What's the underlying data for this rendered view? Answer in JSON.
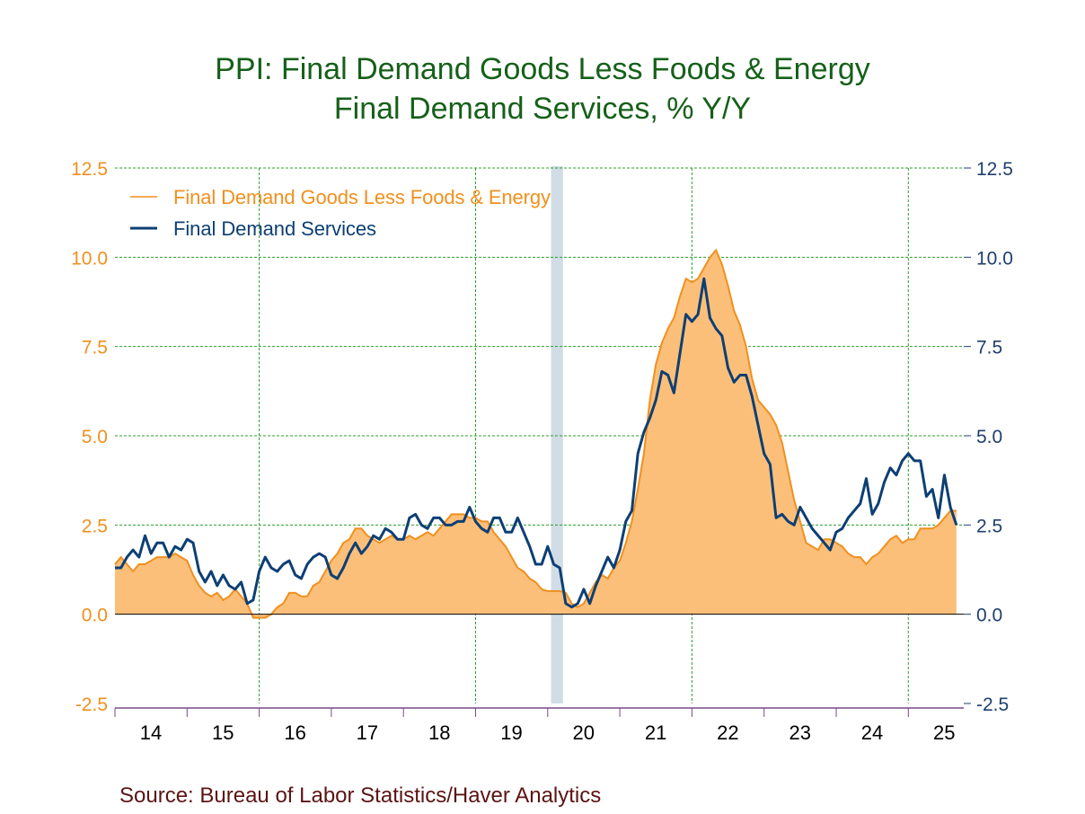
{
  "chart_data": {
    "type": "area+line",
    "title": "PPI: Final Demand Goods Less Foods & Energy",
    "subtitle": "Final Demand Services, % Y/Y",
    "source": "Source:  Bureau of Labor Statistics/Haver Analytics",
    "start": "2014-01",
    "frequency": "monthly",
    "ylim": [
      -2.5,
      12.5
    ],
    "yticks": [
      "12.5",
      "10.0",
      "7.5",
      "5.0",
      "2.5",
      "0.0",
      "-2.5"
    ],
    "xticks": [
      "14",
      "15",
      "16",
      "17",
      "18",
      "19",
      "20",
      "21",
      "22",
      "23",
      "24",
      "25"
    ],
    "grid": true,
    "legend": "top-left",
    "recession": [
      "2020-02",
      "2020-04"
    ],
    "colors": {
      "goods_line": "#f0901e",
      "goods_fill": "#fcbf7a",
      "services": "#0d3f74",
      "grid": "#2aa02a",
      "title": "#16601a",
      "left_axis": "#f0901e",
      "right_axis": "#1f3f6e",
      "recession": "#d0dde6"
    },
    "series": [
      {
        "name": "Final Demand Goods Less Foods & Energy",
        "style": "area",
        "values": [
          1.4,
          1.6,
          1.4,
          1.2,
          1.4,
          1.4,
          1.5,
          1.6,
          1.6,
          1.6,
          1.7,
          1.6,
          1.5,
          1.1,
          0.8,
          0.6,
          0.5,
          0.6,
          0.4,
          0.5,
          0.7,
          0.5,
          0.3,
          -0.1,
          -0.1,
          -0.1,
          0.0,
          0.2,
          0.3,
          0.6,
          0.6,
          0.5,
          0.5,
          0.8,
          0.9,
          1.2,
          1.5,
          1.7,
          2.0,
          2.1,
          2.4,
          2.4,
          2.2,
          2.1,
          2.0,
          2.1,
          2.2,
          2.1,
          2.1,
          2.2,
          2.1,
          2.2,
          2.3,
          2.2,
          2.4,
          2.6,
          2.8,
          2.8,
          2.8,
          2.7,
          2.7,
          2.6,
          2.6,
          2.3,
          2.1,
          1.9,
          1.6,
          1.3,
          1.2,
          1.0,
          0.9,
          0.7,
          0.65,
          0.65,
          0.65,
          0.6,
          0.3,
          0.2,
          0.3,
          0.6,
          0.9,
          1.1,
          1.0,
          1.3,
          1.5,
          2.0,
          2.6,
          3.5,
          4.5,
          6.0,
          7.0,
          7.6,
          8.0,
          8.3,
          8.9,
          9.4,
          9.3,
          9.4,
          9.7,
          10.0,
          10.2,
          9.8,
          9.2,
          8.5,
          8.1,
          7.5,
          6.6,
          6.0,
          5.8,
          5.6,
          5.3,
          4.8,
          4.0,
          3.2,
          2.6,
          2.0,
          1.9,
          1.8,
          2.1,
          2.1,
          2.0,
          1.9,
          1.7,
          1.6,
          1.6,
          1.4,
          1.6,
          1.7,
          1.9,
          2.1,
          2.2,
          2.0,
          2.1,
          2.1,
          2.4,
          2.4,
          2.4,
          2.5,
          2.7,
          2.9,
          2.9
        ]
      },
      {
        "name": "Final Demand Services",
        "style": "line",
        "values": [
          1.3,
          1.3,
          1.6,
          1.8,
          1.6,
          2.2,
          1.7,
          2.0,
          2.0,
          1.6,
          1.9,
          1.8,
          2.1,
          2.0,
          1.2,
          0.9,
          1.2,
          0.8,
          1.1,
          0.8,
          0.7,
          0.9,
          0.3,
          0.4,
          1.2,
          1.6,
          1.3,
          1.2,
          1.4,
          1.5,
          1.1,
          1.0,
          1.4,
          1.6,
          1.7,
          1.6,
          1.1,
          1.0,
          1.3,
          1.7,
          2.0,
          1.7,
          1.9,
          2.2,
          2.1,
          2.4,
          2.3,
          2.1,
          2.1,
          2.7,
          2.8,
          2.5,
          2.4,
          2.7,
          2.7,
          2.5,
          2.5,
          2.6,
          2.6,
          3.0,
          2.6,
          2.4,
          2.3,
          2.7,
          2.7,
          2.3,
          2.3,
          2.7,
          2.3,
          1.9,
          1.4,
          1.4,
          1.9,
          1.4,
          1.3,
          0.3,
          0.2,
          0.3,
          0.7,
          0.3,
          0.8,
          1.2,
          1.6,
          1.3,
          1.8,
          2.6,
          2.9,
          4.5,
          5.1,
          5.5,
          6.0,
          6.8,
          6.7,
          6.2,
          7.3,
          8.4,
          8.2,
          8.4,
          9.4,
          8.3,
          8.0,
          7.8,
          6.9,
          6.5,
          6.7,
          6.7,
          6.1,
          5.3,
          4.5,
          4.2,
          2.7,
          2.8,
          2.6,
          2.5,
          3.0,
          2.7,
          2.4,
          2.2,
          2.0,
          1.8,
          2.3,
          2.4,
          2.7,
          2.9,
          3.1,
          3.8,
          2.8,
          3.1,
          3.7,
          4.1,
          3.9,
          4.3,
          4.5,
          4.3,
          4.3,
          3.3,
          3.5,
          2.7,
          3.9,
          3.0,
          2.5
        ]
      }
    ]
  }
}
